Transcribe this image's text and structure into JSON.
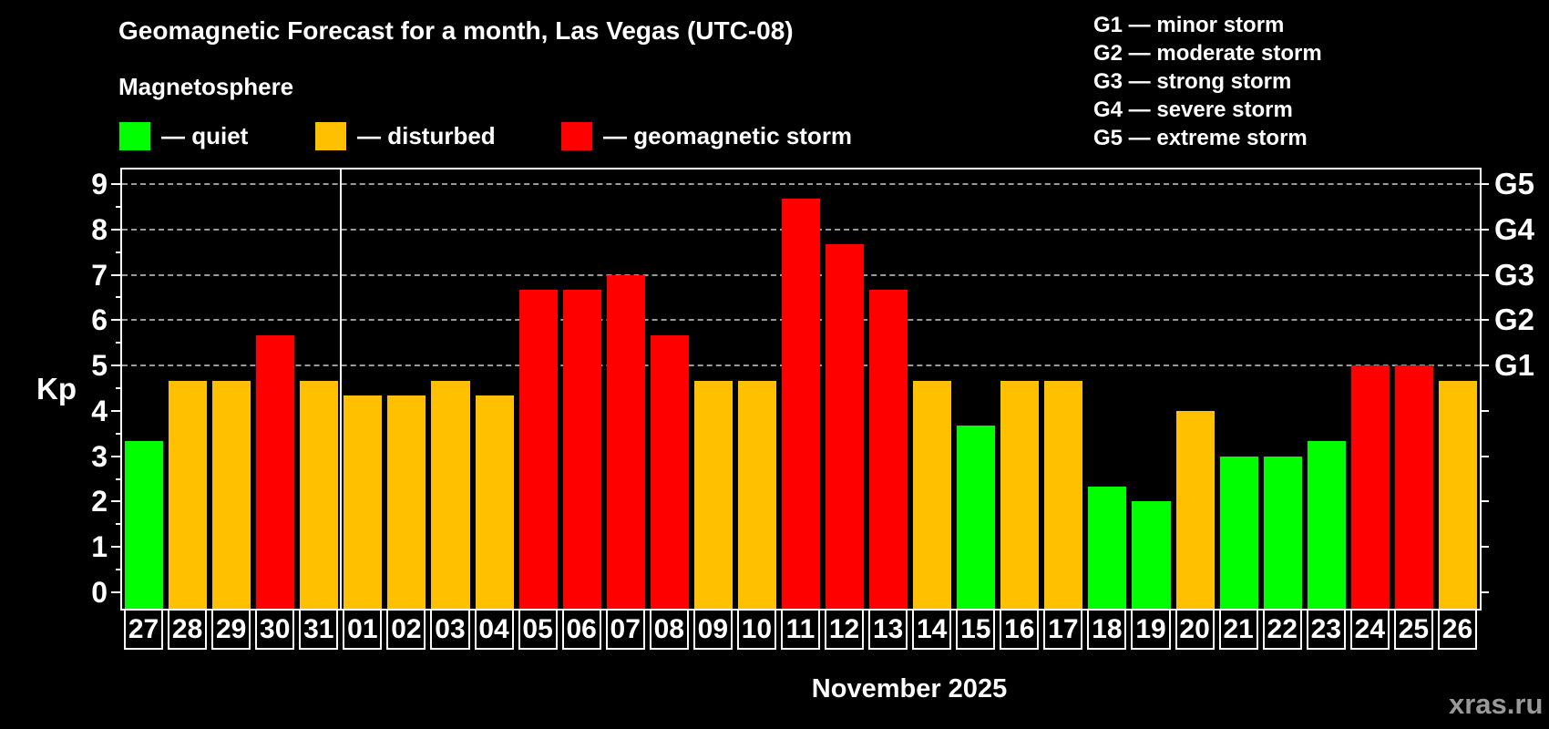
{
  "header": {
    "title": "Geomagnetic Forecast for a month, Las Vegas (UTC-08)",
    "subtitle": "Magnetosphere"
  },
  "legend": {
    "items": [
      {
        "label": "— quiet",
        "status": "quiet"
      },
      {
        "label": "— disturbed",
        "status": "disturbed"
      },
      {
        "label": "— geomagnetic storm",
        "status": "storm"
      }
    ]
  },
  "g_legend": {
    "items": [
      {
        "label": "G1 — minor storm"
      },
      {
        "label": "G2 — moderate storm"
      },
      {
        "label": "G3 — strong storm"
      },
      {
        "label": "G4 — severe storm"
      },
      {
        "label": "G5 — extreme storm"
      }
    ]
  },
  "colors": {
    "quiet": "#00ff00",
    "disturbed": "#ffc000",
    "storm": "#ff0000",
    "grid": "#9a9a9a",
    "axis": "#ffffff",
    "background": "#000000",
    "watermark_text": "#999999"
  },
  "chart_data": {
    "type": "bar",
    "title": "Geomagnetic Forecast for a month, Las Vegas (UTC-08)",
    "categories": [
      "27",
      "28",
      "29",
      "30",
      "31",
      "01",
      "02",
      "03",
      "04",
      "05",
      "06",
      "07",
      "08",
      "09",
      "10",
      "11",
      "12",
      "13",
      "14",
      "15",
      "16",
      "17",
      "18",
      "19",
      "20",
      "21",
      "22",
      "23",
      "24",
      "25",
      "26"
    ],
    "values": [
      3.33,
      4.67,
      4.67,
      5.67,
      4.67,
      4.33,
      4.33,
      4.67,
      4.33,
      6.67,
      6.67,
      7.0,
      5.67,
      4.67,
      4.67,
      8.67,
      7.67,
      6.67,
      4.67,
      3.67,
      4.67,
      4.67,
      2.33,
      2.0,
      4.0,
      3.0,
      3.0,
      3.33,
      5.0,
      5.0,
      4.67
    ],
    "statuses": [
      "quiet",
      "disturbed",
      "disturbed",
      "storm",
      "disturbed",
      "disturbed",
      "disturbed",
      "disturbed",
      "disturbed",
      "storm",
      "storm",
      "storm",
      "storm",
      "disturbed",
      "disturbed",
      "storm",
      "storm",
      "storm",
      "disturbed",
      "quiet",
      "disturbed",
      "disturbed",
      "quiet",
      "quiet",
      "disturbed",
      "quiet",
      "quiet",
      "quiet",
      "storm",
      "storm",
      "disturbed"
    ],
    "ylabel": "Kp",
    "xlabel": "November 2025",
    "ylim": [
      0,
      9
    ],
    "yticks": [
      0,
      1,
      2,
      3,
      4,
      5,
      6,
      7,
      8,
      9
    ],
    "gridlines_at": [
      5,
      6,
      7,
      8,
      9
    ],
    "right_axis_labels": [
      {
        "kp": 5,
        "label": "G1"
      },
      {
        "kp": 6,
        "label": "G2"
      },
      {
        "kp": 7,
        "label": "G3"
      },
      {
        "kp": 8,
        "label": "G4"
      },
      {
        "kp": 9,
        "label": "G5"
      }
    ],
    "month_separator_after_index": 4,
    "legend_position": "top-left",
    "grid": "dashed-horizontal-storm-levels-only"
  },
  "footer": {
    "month_label": "November 2025",
    "watermark": "xras.ru"
  }
}
